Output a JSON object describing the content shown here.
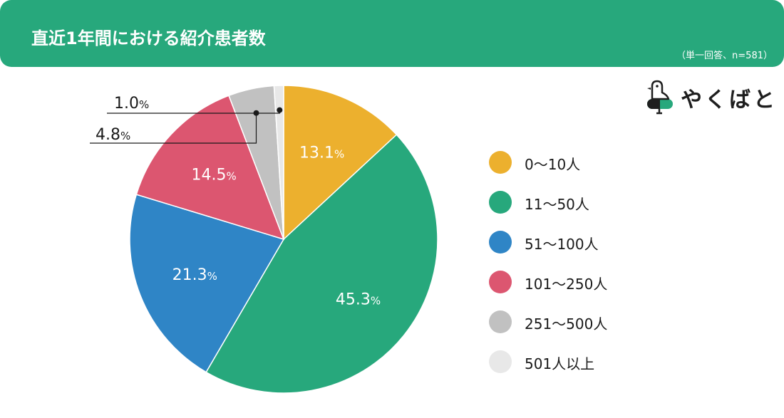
{
  "header": {
    "title": "直近1年間における紹介患者数",
    "subtitle": "（単一回答、n=581）"
  },
  "logo": {
    "text": "やくばと",
    "icon": "bird-on-pill-icon"
  },
  "chart_data": {
    "type": "pie",
    "start_angle_deg": 0,
    "direction": "clockwise",
    "categories": [
      "0〜10人",
      "11〜50人",
      "51〜100人",
      "101〜250人",
      "251〜500人",
      "501人以上"
    ],
    "values": [
      13.1,
      45.3,
      21.3,
      14.5,
      4.8,
      1.0
    ],
    "value_labels": [
      "13.1",
      "45.3",
      "21.3",
      "14.5",
      "4.8",
      "1.0"
    ],
    "unit": "%",
    "colors": [
      "#ecb02e",
      "#27a87c",
      "#2f85c6",
      "#dc5670",
      "#c1c1c1",
      "#e8e8e8"
    ],
    "legend_position": "right"
  }
}
